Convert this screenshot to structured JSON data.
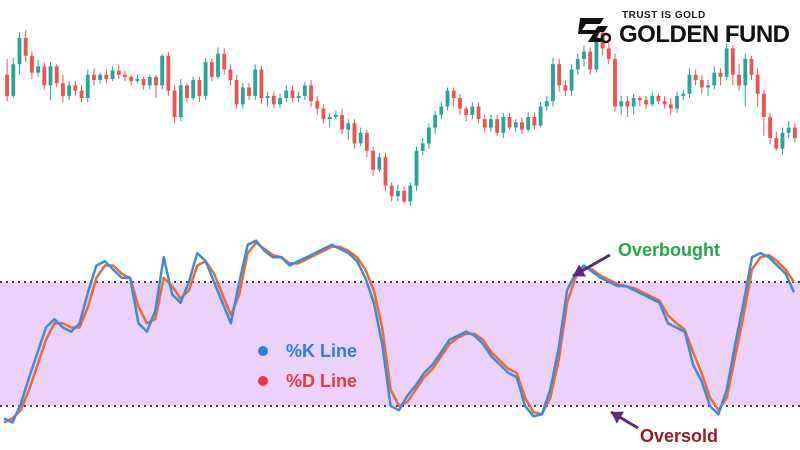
{
  "brand": {
    "tagline": "TRUST IS GOLD",
    "name": "GOLDEN FUND",
    "logo_icon": "golden-fund-logo-icon"
  },
  "colors": {
    "bullish": "#26a69a",
    "bearish": "#ef5350",
    "k_line": "#3d8be0",
    "d_line": "#ef6a2b",
    "zone_fill": "#ecd2fb",
    "overbought_text": "#1faa4a",
    "oversold_text": "#9c1b1b",
    "arrow": "#5b2a86",
    "legend_k": "#2a7fd6",
    "legend_d": "#e83c3c"
  },
  "annotations": {
    "overbought": "Overbought",
    "oversold": "Oversold"
  },
  "legend": {
    "k_label": "%K Line",
    "d_label": "%D Line"
  },
  "chart_data": [
    {
      "type": "candlestick",
      "title": "",
      "candles": [
        [
          150,
          130,
          165,
          125
        ],
        [
          130,
          160,
          166,
          128
        ],
        [
          160,
          185,
          190,
          150
        ],
        [
          185,
          168,
          192,
          162
        ],
        [
          168,
          152,
          172,
          146
        ],
        [
          152,
          158,
          164,
          148
        ],
        [
          158,
          140,
          162,
          136
        ],
        [
          140,
          158,
          162,
          126
        ],
        [
          158,
          142,
          160,
          138
        ],
        [
          142,
          130,
          150,
          124
        ],
        [
          130,
          140,
          144,
          126
        ],
        [
          140,
          135,
          144,
          130
        ],
        [
          135,
          128,
          140,
          124
        ],
        [
          128,
          150,
          155,
          124
        ],
        [
          150,
          145,
          156,
          140
        ],
        [
          145,
          150,
          152,
          142
        ],
        [
          150,
          146,
          155,
          142
        ],
        [
          146,
          154,
          158,
          144
        ],
        [
          154,
          150,
          160,
          146
        ],
        [
          150,
          148,
          154,
          144
        ],
        [
          148,
          144,
          150,
          140
        ],
        [
          144,
          146,
          150,
          142
        ],
        [
          146,
          140,
          148,
          136
        ],
        [
          140,
          148,
          150,
          136
        ],
        [
          148,
          140,
          150,
          128
        ],
        [
          140,
          168,
          170,
          136
        ],
        [
          168,
          135,
          172,
          130
        ],
        [
          135,
          110,
          140,
          104
        ],
        [
          110,
          140,
          146,
          106
        ],
        [
          140,
          128,
          142,
          124
        ],
        [
          128,
          145,
          148,
          126
        ],
        [
          145,
          130,
          148,
          124
        ],
        [
          130,
          162,
          166,
          126
        ],
        [
          162,
          148,
          165,
          144
        ],
        [
          148,
          170,
          176,
          146
        ],
        [
          170,
          155,
          175,
          150
        ],
        [
          155,
          145,
          160,
          140
        ],
        [
          145,
          122,
          150,
          118
        ],
        [
          122,
          138,
          142,
          118
        ],
        [
          138,
          130,
          142,
          126
        ],
        [
          130,
          155,
          160,
          126
        ],
        [
          155,
          128,
          158,
          122
        ],
        [
          128,
          130,
          134,
          120
        ],
        [
          130,
          122,
          134,
          118
        ],
        [
          122,
          128,
          132,
          118
        ],
        [
          128,
          135,
          140,
          124
        ],
        [
          135,
          128,
          140,
          124
        ],
        [
          128,
          130,
          134,
          124
        ],
        [
          130,
          140,
          143,
          126
        ],
        [
          140,
          125,
          145,
          120
        ],
        [
          125,
          118,
          130,
          112
        ],
        [
          118,
          108,
          122,
          104
        ],
        [
          108,
          110,
          114,
          100
        ],
        [
          110,
          112,
          116,
          108
        ],
        [
          112,
          98,
          118,
          94
        ],
        [
          98,
          104,
          108,
          88
        ],
        [
          104,
          85,
          108,
          80
        ],
        [
          85,
          95,
          100,
          82
        ],
        [
          95,
          78,
          98,
          72
        ],
        [
          78,
          60,
          82,
          54
        ],
        [
          60,
          72,
          76,
          58
        ],
        [
          72,
          45,
          76,
          40
        ],
        [
          45,
          35,
          48,
          30
        ],
        [
          35,
          40,
          46,
          30
        ],
        [
          40,
          30,
          44,
          28
        ],
        [
          30,
          45,
          48,
          26
        ],
        [
          45,
          78,
          82,
          40
        ],
        [
          78,
          85,
          90,
          74
        ],
        [
          85,
          100,
          104,
          80
        ],
        [
          100,
          112,
          116,
          94
        ],
        [
          112,
          120,
          124,
          108
        ],
        [
          120,
          135,
          138,
          116
        ],
        [
          135,
          128,
          138,
          120
        ],
        [
          128,
          118,
          132,
          112
        ],
        [
          118,
          112,
          120,
          106
        ],
        [
          112,
          120,
          124,
          108
        ],
        [
          120,
          108,
          124,
          104
        ],
        [
          108,
          100,
          112,
          96
        ],
        [
          100,
          108,
          112,
          96
        ],
        [
          108,
          95,
          112,
          92
        ],
        [
          95,
          110,
          114,
          90
        ],
        [
          110,
          100,
          114,
          98
        ],
        [
          100,
          105,
          108,
          96
        ],
        [
          105,
          98,
          110,
          94
        ],
        [
          98,
          110,
          115,
          96
        ],
        [
          110,
          102,
          114,
          98
        ],
        [
          102,
          120,
          124,
          100
        ],
        [
          120,
          125,
          130,
          116
        ],
        [
          125,
          160,
          166,
          120
        ],
        [
          160,
          140,
          165,
          134
        ],
        [
          140,
          135,
          145,
          130
        ],
        [
          135,
          155,
          160,
          130
        ],
        [
          155,
          165,
          170,
          150
        ],
        [
          165,
          172,
          178,
          158
        ],
        [
          172,
          155,
          176,
          150
        ],
        [
          155,
          190,
          195,
          152
        ],
        [
          190,
          175,
          194,
          168
        ],
        [
          175,
          165,
          180,
          160
        ],
        [
          165,
          120,
          170,
          115
        ],
        [
          120,
          125,
          130,
          112
        ],
        [
          125,
          120,
          130,
          110
        ],
        [
          120,
          128,
          132,
          112
        ],
        [
          128,
          126,
          130,
          120
        ],
        [
          126,
          122,
          130,
          118
        ],
        [
          122,
          130,
          134,
          120
        ],
        [
          130,
          125,
          132,
          122
        ],
        [
          125,
          122,
          130,
          118
        ],
        [
          122,
          118,
          128,
          112
        ],
        [
          118,
          130,
          134,
          114
        ],
        [
          130,
          132,
          136,
          126
        ],
        [
          132,
          150,
          156,
          128
        ],
        [
          150,
          145,
          155,
          140
        ],
        [
          145,
          138,
          150,
          132
        ],
        [
          138,
          140,
          145,
          130
        ],
        [
          140,
          152,
          158,
          136
        ],
        [
          152,
          148,
          156,
          140
        ],
        [
          148,
          175,
          180,
          145
        ],
        [
          175,
          150,
          178,
          140
        ],
        [
          150,
          140,
          160,
          135
        ],
        [
          140,
          165,
          170,
          120
        ],
        [
          165,
          150,
          168,
          145
        ],
        [
          150,
          132,
          156,
          120
        ],
        [
          132,
          110,
          136,
          92
        ],
        [
          110,
          90,
          114,
          84
        ],
        [
          90,
          80,
          96,
          78
        ],
        [
          80,
          95,
          100,
          74
        ],
        [
          95,
          100,
          106,
          90
        ],
        [
          100,
          90,
          104,
          86
        ]
      ]
    },
    {
      "type": "line",
      "title": "",
      "ylim": [
        -10,
        110
      ],
      "levels": {
        "overbought": 80,
        "oversold": 20
      },
      "series": [
        {
          "name": "%K Line",
          "values": [
            14,
            12,
            21,
            34,
            46,
            58,
            62,
            58,
            56,
            60,
            75,
            88,
            90,
            86,
            82,
            82,
            60,
            56,
            66,
            92,
            74,
            70,
            80,
            94,
            90,
            80,
            70,
            60,
            80,
            98,
            100,
            95,
            92,
            92,
            88,
            90,
            92,
            94,
            96,
            98,
            96,
            94,
            90,
            82,
            70,
            50,
            20,
            18,
            25,
            30,
            36,
            40,
            46,
            52,
            54,
            56,
            54,
            50,
            44,
            40,
            36,
            34,
            20,
            15,
            16,
            28,
            48,
            76,
            84,
            88,
            85,
            82,
            80,
            78,
            78,
            76,
            74,
            72,
            70,
            60,
            58,
            56,
            40,
            32,
            20,
            16,
            28,
            50,
            70,
            92,
            94,
            92,
            88,
            84,
            75
          ]
        },
        {
          "name": "%D Line",
          "values": [
            12,
            14,
            18,
            28,
            40,
            52,
            60,
            60,
            58,
            58,
            68,
            82,
            88,
            88,
            84,
            82,
            68,
            60,
            62,
            82,
            78,
            72,
            76,
            88,
            90,
            84,
            74,
            64,
            74,
            94,
            99,
            96,
            93,
            92,
            89,
            89,
            91,
            93,
            95,
            97,
            97,
            95,
            92,
            86,
            76,
            58,
            28,
            20,
            22,
            28,
            34,
            38,
            44,
            50,
            53,
            55,
            55,
            52,
            46,
            42,
            38,
            36,
            24,
            17,
            16,
            24,
            42,
            70,
            82,
            87,
            86,
            83,
            81,
            79,
            78,
            77,
            75,
            73,
            71,
            64,
            60,
            57,
            46,
            36,
            24,
            18,
            24,
            44,
            64,
            86,
            92,
            93,
            90,
            86,
            80
          ]
        }
      ]
    }
  ]
}
